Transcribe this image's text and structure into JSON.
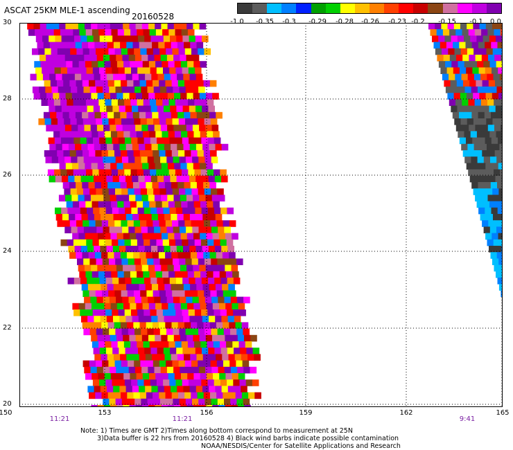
{
  "header": {
    "title": "ASCAT 25KM MLE-1 ascending",
    "date": "20160528"
  },
  "colorbar": {
    "colors": [
      "#3a3a3a",
      "#5c5c5c",
      "#00bfff",
      "#0080ff",
      "#0020ff",
      "#00a000",
      "#00d000",
      "#ffff00",
      "#ffc000",
      "#ff8000",
      "#ff4000",
      "#ff0000",
      "#c80000",
      "#8b4513",
      "#d070a0",
      "#ff00ff",
      "#c000e0",
      "#8000b0"
    ],
    "labels": [
      "-1.0",
      "-0.35",
      "-0.3",
      "-0.29",
      "-0.28",
      "-0.26",
      "-0.23",
      "-0.2",
      "-0.15",
      "-0.1",
      "0.0"
    ]
  },
  "map": {
    "lat_labels": [
      "30",
      "28",
      "26",
      "24",
      "22",
      "20"
    ],
    "lon_labels": [
      "150",
      "153",
      "156",
      "159",
      "162",
      "165"
    ],
    "time_labels": [
      "11:21",
      "11:21",
      "9:41"
    ],
    "lat_range": [
      20,
      30
    ],
    "lon_range": [
      150,
      165
    ]
  },
  "notes": {
    "line1": "Note: 1) Times are GMT 2)Times along bottom correspond to measurement at 25N",
    "line2": "3)Data buffer is 22 hrs from 20160528 4) Black wind barbs indicate possible contamination",
    "line3": "NOAA/NESDIS/Center for Satellite Applications and Research"
  }
}
